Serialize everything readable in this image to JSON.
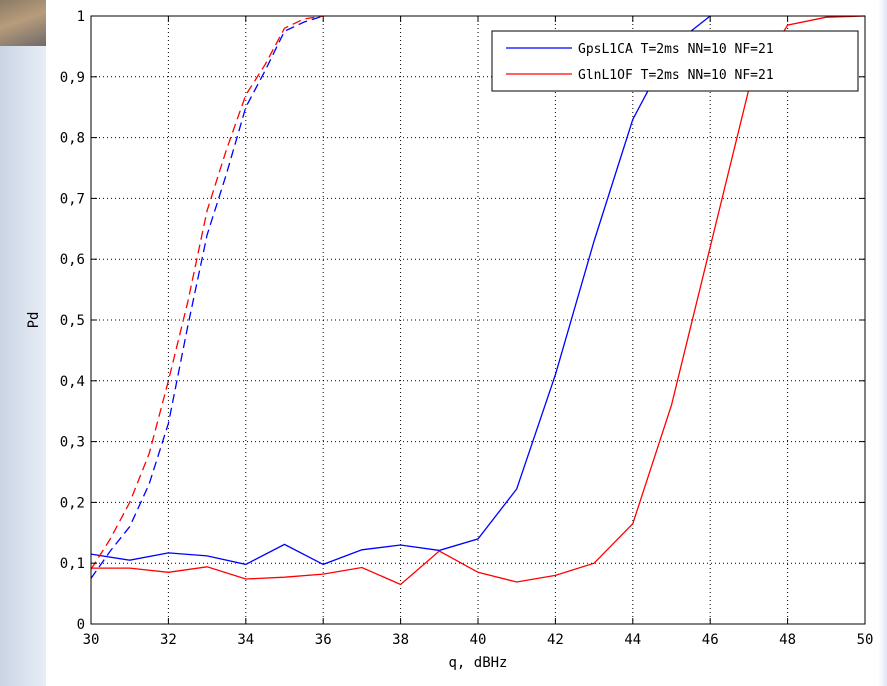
{
  "chart_data": {
    "type": "line",
    "xlabel": "q, dBHz",
    "ylabel": "Pd",
    "xlim": [
      30,
      50
    ],
    "ylim": [
      0,
      1
    ],
    "xticks": [
      30,
      32,
      34,
      36,
      38,
      40,
      42,
      44,
      46,
      48,
      50
    ],
    "yticks": [
      0,
      0.1,
      0.2,
      0.3,
      0.4,
      0.5,
      0.6,
      0.7,
      0.8,
      0.9,
      1
    ],
    "ytick_labels": [
      "0",
      "0,1",
      "0,2",
      "0,3",
      "0,4",
      "0,5",
      "0,6",
      "0,7",
      "0,8",
      "0,9",
      "1"
    ],
    "grid": true,
    "legend_position": "top-right",
    "colors": {
      "blue": "#0000ff",
      "red": "#ff0000"
    },
    "series": [
      {
        "name": "GpsL1CA T=2ms NN=10 NF=21",
        "color": "#0000ff",
        "dash": false,
        "in_legend": true,
        "x": [
          30,
          31,
          32,
          33,
          34,
          35,
          36,
          37,
          38,
          39,
          40,
          41,
          42,
          43,
          44,
          45,
          46
        ],
        "y": [
          0.115,
          0.105,
          0.117,
          0.112,
          0.098,
          0.131,
          0.098,
          0.122,
          0.13,
          0.121,
          0.14,
          0.222,
          0.41,
          0.63,
          0.83,
          0.95,
          1.0
        ]
      },
      {
        "name": "GlnL1OF T=2ms NN=10 NF=21",
        "color": "#ff0000",
        "dash": false,
        "in_legend": true,
        "x": [
          30,
          31,
          32,
          33,
          34,
          35,
          36,
          37,
          38,
          39,
          40,
          41,
          42,
          43,
          44,
          45,
          46,
          47,
          48,
          49,
          50
        ],
        "y": [
          0.092,
          0.092,
          0.085,
          0.094,
          0.074,
          0.077,
          0.082,
          0.093,
          0.065,
          0.12,
          0.085,
          0.069,
          0.08,
          0.1,
          0.165,
          0.36,
          0.62,
          0.88,
          0.985,
          0.998,
          1.0
        ]
      },
      {
        "name": "",
        "color": "#0000ff",
        "dash": true,
        "in_legend": false,
        "x": [
          30,
          30.5,
          31,
          31.5,
          32,
          32.5,
          33,
          33.5,
          34,
          34.5,
          35,
          35.5,
          36
        ],
        "y": [
          0.075,
          0.12,
          0.16,
          0.23,
          0.33,
          0.49,
          0.64,
          0.74,
          0.85,
          0.91,
          0.975,
          0.99,
          1.0
        ]
      },
      {
        "name": "",
        "color": "#ff0000",
        "dash": true,
        "in_legend": false,
        "x": [
          30,
          30.5,
          31,
          31.5,
          32,
          32.5,
          33,
          33.5,
          34,
          34.5,
          35,
          35.5,
          36
        ],
        "y": [
          0.09,
          0.14,
          0.2,
          0.28,
          0.4,
          0.53,
          0.68,
          0.78,
          0.87,
          0.92,
          0.98,
          0.995,
          1.0
        ]
      }
    ]
  }
}
